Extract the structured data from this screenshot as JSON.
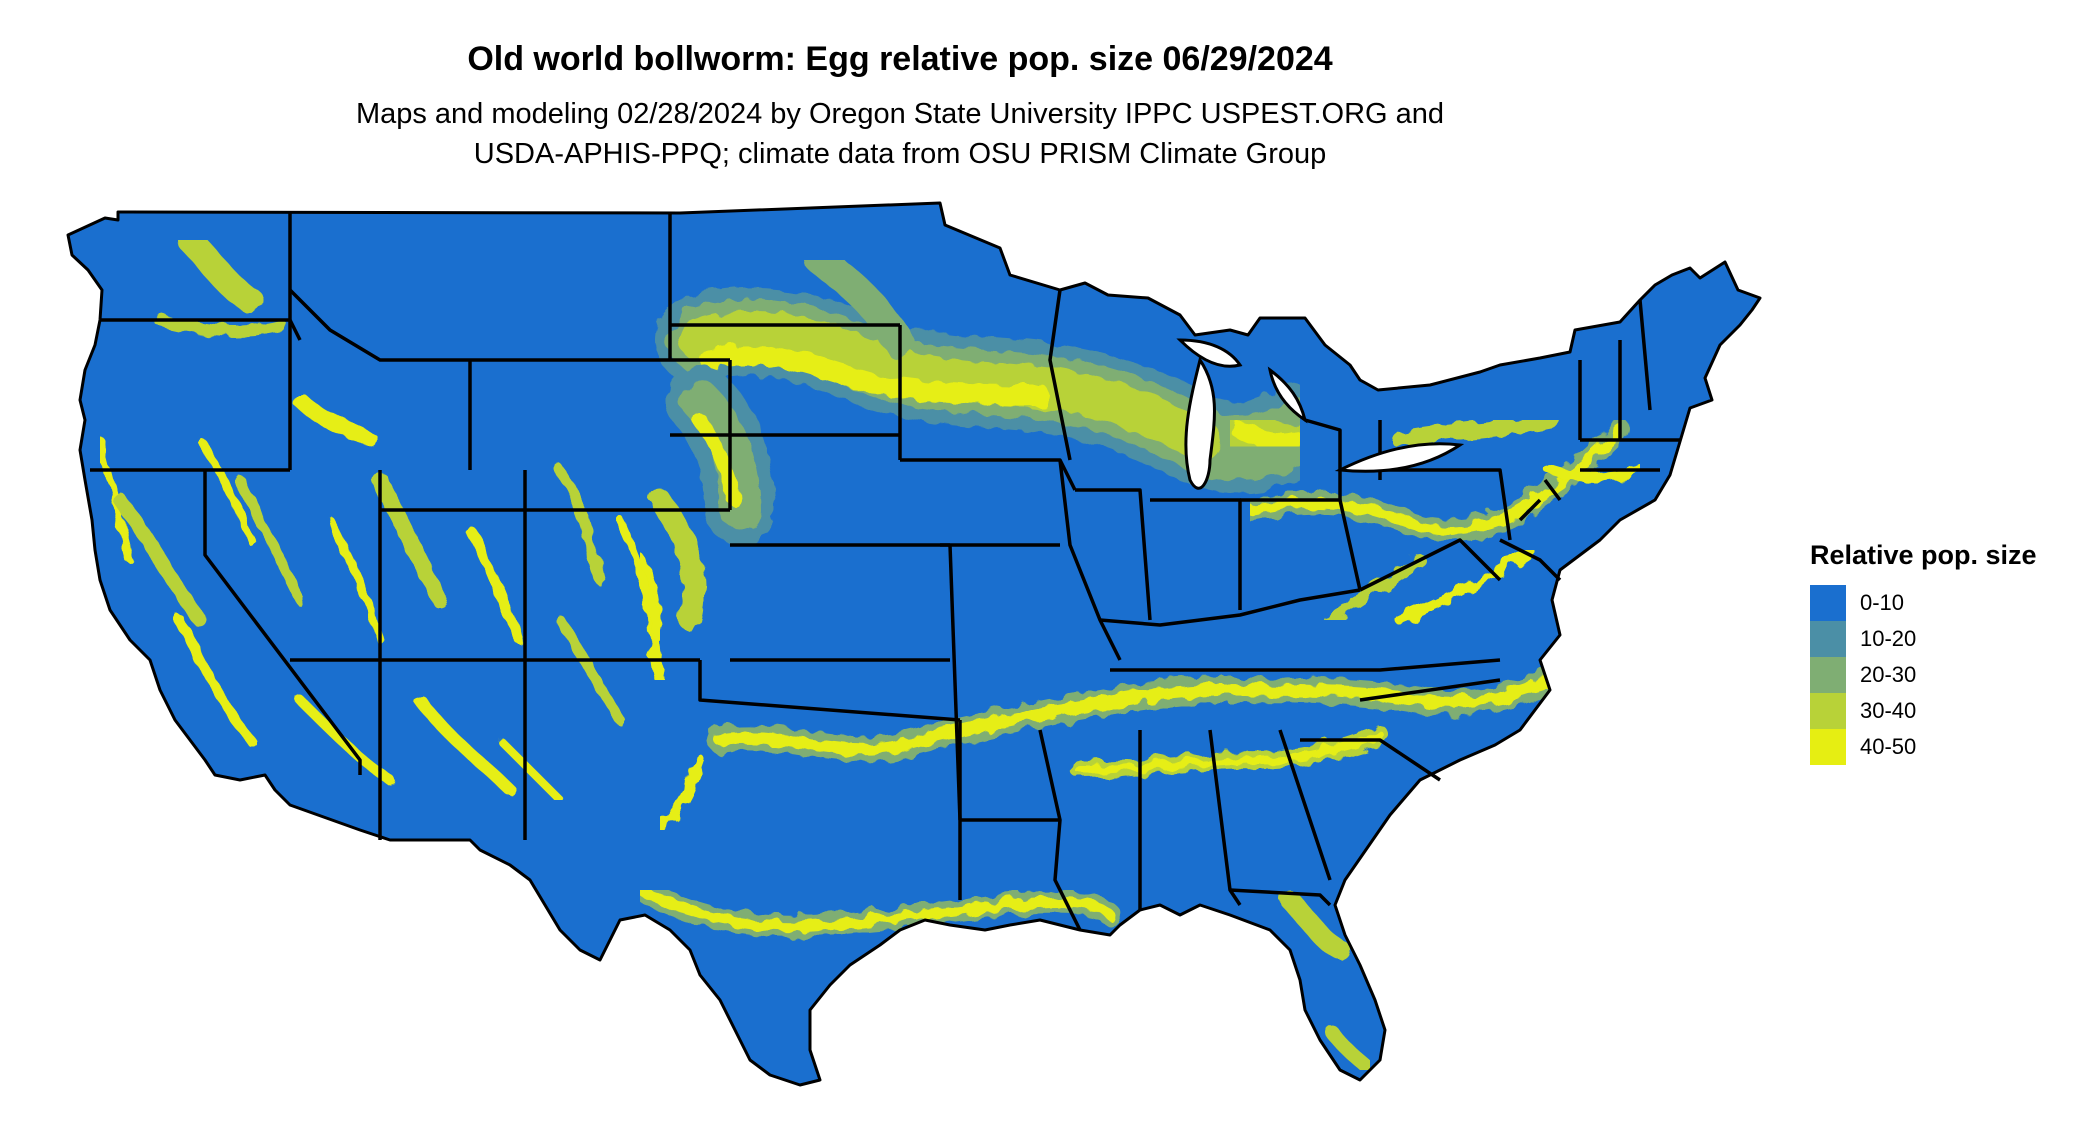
{
  "title": "Old world bollworm: Egg relative pop. size 06/29/2024",
  "subtitle": [
    "Maps and modeling 02/28/2024 by Oregon State University IPPC USPEST.ORG and",
    "USDA-APHIS-PPQ; climate data from OSU PRISM Climate Group"
  ],
  "legend": {
    "title": "Relative pop. size",
    "items": [
      {
        "label": "0-10",
        "color": "#1a6fcf"
      },
      {
        "label": "10-20",
        "color": "#4b8fa6"
      },
      {
        "label": "20-30",
        "color": "#7fae73"
      },
      {
        "label": "30-40",
        "color": "#b8d238"
      },
      {
        "label": "40-50",
        "color": "#e6ee12"
      }
    ]
  },
  "map": {
    "region": "contiguous-united-states",
    "base_color": "#1a6fcf",
    "border_color": "#000000"
  }
}
